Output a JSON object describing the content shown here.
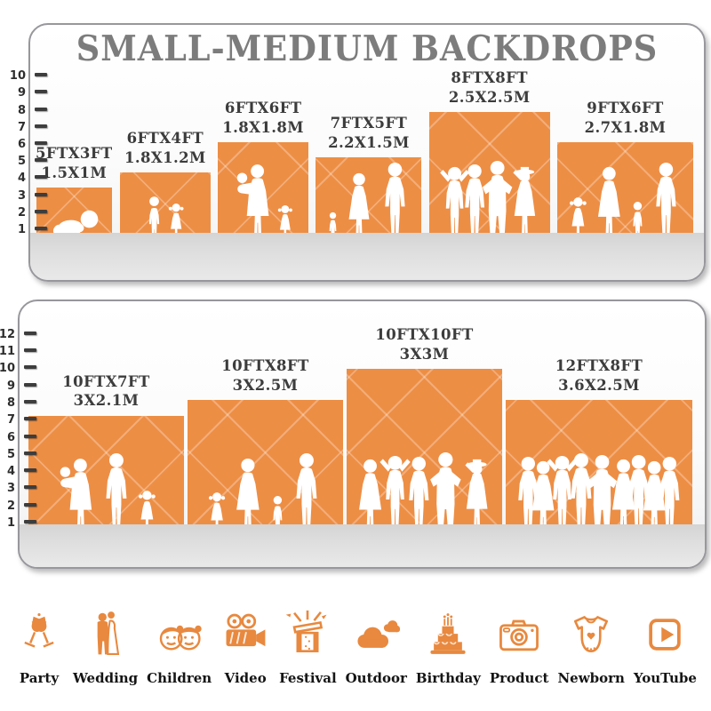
{
  "title": "SMALL-MEDIUM BACKDROPS",
  "colors": {
    "backdrop_orange": "#ED8E45",
    "icon_orange": "#E8893F",
    "title_gray": "#7C7C7C",
    "label_dark": "#3C3C3C",
    "floor_gray": "#DCDCDC"
  },
  "chart_data": {
    "type": "size-comparison",
    "title": "SMALL-MEDIUM BACKDROPS",
    "ruler_unit": "ft",
    "panels": [
      {
        "ruler_ft": [
          1,
          2,
          3,
          4,
          5,
          6,
          7,
          8,
          9,
          10
        ],
        "items": [
          {
            "size_ft_label": "5FTX3FT",
            "size_m_label": "1.5X1M",
            "width_ft": 5,
            "height_ft": 3,
            "figures": [
              {
                "type": "baby",
                "height_ft": 2.2
              }
            ]
          },
          {
            "size_ft_label": "6FTX4FT",
            "size_m_label": "1.8X1.2M",
            "width_ft": 6,
            "height_ft": 4,
            "figures": [
              {
                "type": "child",
                "height_ft": 3.5
              },
              {
                "type": "girl",
                "height_ft": 3.0
              }
            ]
          },
          {
            "size_ft_label": "6FTX6FT",
            "size_m_label": "1.8X1.8M",
            "width_ft": 6,
            "height_ft": 6,
            "figures": [
              {
                "type": "woman-baby",
                "height_ft": 5.6
              },
              {
                "type": "girl",
                "height_ft": 2.9
              }
            ]
          },
          {
            "size_ft_label": "7FTX5FT",
            "size_m_label": "2.2X1.5M",
            "width_ft": 7,
            "height_ft": 5,
            "figures": [
              {
                "type": "child",
                "height_ft": 2.4
              },
              {
                "type": "woman",
                "height_ft": 5.0
              },
              {
                "type": "man",
                "height_ft": 5.7
              }
            ]
          },
          {
            "size_ft_label": "8FTX8FT",
            "size_m_label": "2.5X2.5M",
            "width_ft": 8,
            "height_ft": 8,
            "figures": [
              {
                "type": "man-up",
                "height_ft": 5.5
              },
              {
                "type": "man",
                "height_ft": 5.6
              },
              {
                "type": "man-hip",
                "height_ft": 5.8
              },
              {
                "type": "woman-hat",
                "height_ft": 5.5
              }
            ]
          },
          {
            "size_ft_label": "9FTX6FT",
            "size_m_label": "2.7X1.8M",
            "width_ft": 9,
            "height_ft": 6,
            "figures": [
              {
                "type": "girl",
                "height_ft": 3.4
              },
              {
                "type": "woman",
                "height_ft": 5.4
              },
              {
                "type": "child",
                "height_ft": 3.1
              },
              {
                "type": "man",
                "height_ft": 5.7
              }
            ]
          }
        ]
      },
      {
        "ruler_ft": [
          1,
          2,
          3,
          4,
          5,
          6,
          7,
          8,
          9,
          10,
          11,
          12
        ],
        "items": [
          {
            "size_ft_label": "10FTX7FT",
            "size_m_label": "3X2.1M",
            "width_ft": 10,
            "height_ft": 7,
            "figures": [
              {
                "type": "woman-baby",
                "height_ft": 5.4
              },
              {
                "type": "man",
                "height_ft": 5.7
              },
              {
                "type": "girl",
                "height_ft": 3.3
              }
            ]
          },
          {
            "size_ft_label": "10FTX8FT",
            "size_m_label": "3X2.5M",
            "width_ft": 10,
            "height_ft": 8,
            "figures": [
              {
                "type": "girl",
                "height_ft": 3.2
              },
              {
                "type": "woman",
                "height_ft": 5.4
              },
              {
                "type": "child",
                "height_ft": 3.0
              },
              {
                "type": "man",
                "height_ft": 5.7
              }
            ]
          },
          {
            "size_ft_label": "10FTX10FT",
            "size_m_label": "3X3M",
            "width_ft": 10,
            "height_ft": 10,
            "figures": [
              {
                "type": "woman",
                "height_ft": 5.3
              },
              {
                "type": "man-up",
                "height_ft": 5.6
              },
              {
                "type": "man",
                "height_ft": 5.5
              },
              {
                "type": "man-hip",
                "height_ft": 5.8
              },
              {
                "type": "woman-hat",
                "height_ft": 5.4
              }
            ]
          },
          {
            "size_ft_label": "12FTX8FT",
            "size_m_label": "3.6X2.5M",
            "width_ft": 12,
            "height_ft": 8,
            "figures": [
              {
                "type": "man",
                "height_ft": 5.5
              },
              {
                "type": "woman",
                "height_ft": 5.2
              },
              {
                "type": "man-up",
                "height_ft": 5.6
              },
              {
                "type": "man",
                "height_ft": 5.7
              },
              {
                "type": "man-hip",
                "height_ft": 5.6
              },
              {
                "type": "woman",
                "height_ft": 5.3
              },
              {
                "type": "man",
                "height_ft": 5.6
              },
              {
                "type": "woman",
                "height_ft": 5.2
              },
              {
                "type": "man",
                "height_ft": 5.5
              }
            ]
          }
        ]
      }
    ]
  },
  "categories": [
    {
      "label": "Party",
      "icon": "party-icon"
    },
    {
      "label": "Wedding",
      "icon": "wedding-icon"
    },
    {
      "label": "Children",
      "icon": "children-icon"
    },
    {
      "label": "Video",
      "icon": "video-icon"
    },
    {
      "label": "Festival",
      "icon": "festival-icon"
    },
    {
      "label": "Outdoor",
      "icon": "outdoor-icon"
    },
    {
      "label": "Birthday",
      "icon": "birthday-icon"
    },
    {
      "label": "Product",
      "icon": "product-icon"
    },
    {
      "label": "Newborn",
      "icon": "newborn-icon"
    },
    {
      "label": "YouTube",
      "icon": "youtube-icon"
    }
  ]
}
